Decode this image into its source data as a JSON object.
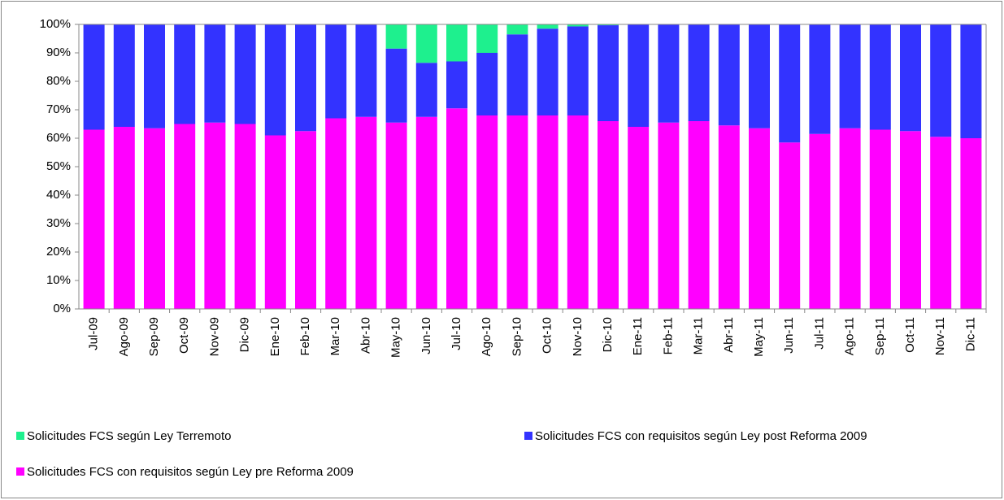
{
  "chart_data": {
    "type": "stacked_bar",
    "categories": [
      "Jul-09",
      "Ago-09",
      "Sep-09",
      "Oct-09",
      "Nov-09",
      "Dic-09",
      "Ene-10",
      "Feb-10",
      "Mar-10",
      "Abr-10",
      "May-10",
      "Jun-10",
      "Jul-10",
      "Ago-10",
      "Sep-10",
      "Oct-10",
      "Nov-10",
      "Dic-10",
      "Ene-11",
      "Feb-11",
      "Mar-11",
      "Abr-11",
      "May-11",
      "Jun-11",
      "Jul-11",
      "Ago-11",
      "Sep-11",
      "Oct-11",
      "Nov-11",
      "Dic-11"
    ],
    "series": [
      {
        "name": "Solicitudes FCS con requisitos según Ley pre Reforma  2009",
        "color": "#ff00ff",
        "values": [
          63,
          64,
          63.5,
          65,
          65.5,
          65,
          61,
          62.5,
          67,
          67.5,
          65.5,
          67.5,
          70.5,
          68,
          68,
          68,
          68,
          66,
          64,
          65.5,
          66,
          64.5,
          63.5,
          58.5,
          61.5,
          63.5,
          63,
          62.5,
          60.5,
          60
        ]
      },
      {
        "name": "Solicitudes FCS con requisitos según Ley post Reforma  2009",
        "color": "#3333ff",
        "values": [
          37,
          36,
          36.5,
          35,
          34.5,
          35,
          39,
          37.5,
          33,
          32.5,
          26,
          19,
          16.5,
          22,
          28.5,
          30.5,
          31.3,
          33.7,
          36,
          34.5,
          34,
          35.5,
          36.5,
          41.5,
          38.5,
          36.5,
          37,
          37.5,
          39.5,
          40
        ]
      },
      {
        "name": "Solicitudes FCS según Ley Terremoto",
        "color": "#1ef08e",
        "values": [
          0,
          0,
          0,
          0,
          0,
          0,
          0,
          0,
          0,
          0,
          8.5,
          13.5,
          13,
          10,
          3.5,
          1.5,
          0.7,
          0.3,
          0,
          0,
          0,
          0,
          0,
          0,
          0,
          0,
          0,
          0,
          0,
          0
        ]
      }
    ],
    "ylim": [
      0,
      100
    ],
    "yticks": [
      {
        "value": 0,
        "label": "0%"
      },
      {
        "value": 10,
        "label": "10%"
      },
      {
        "value": 20,
        "label": "20%"
      },
      {
        "value": 30,
        "label": "30%"
      },
      {
        "value": 40,
        "label": "40%"
      },
      {
        "value": 50,
        "label": "50%"
      },
      {
        "value": 60,
        "label": "60%"
      },
      {
        "value": 70,
        "label": "70%"
      },
      {
        "value": 80,
        "label": "80%"
      },
      {
        "value": 90,
        "label": "90%"
      },
      {
        "value": 100,
        "label": "100%"
      }
    ]
  }
}
